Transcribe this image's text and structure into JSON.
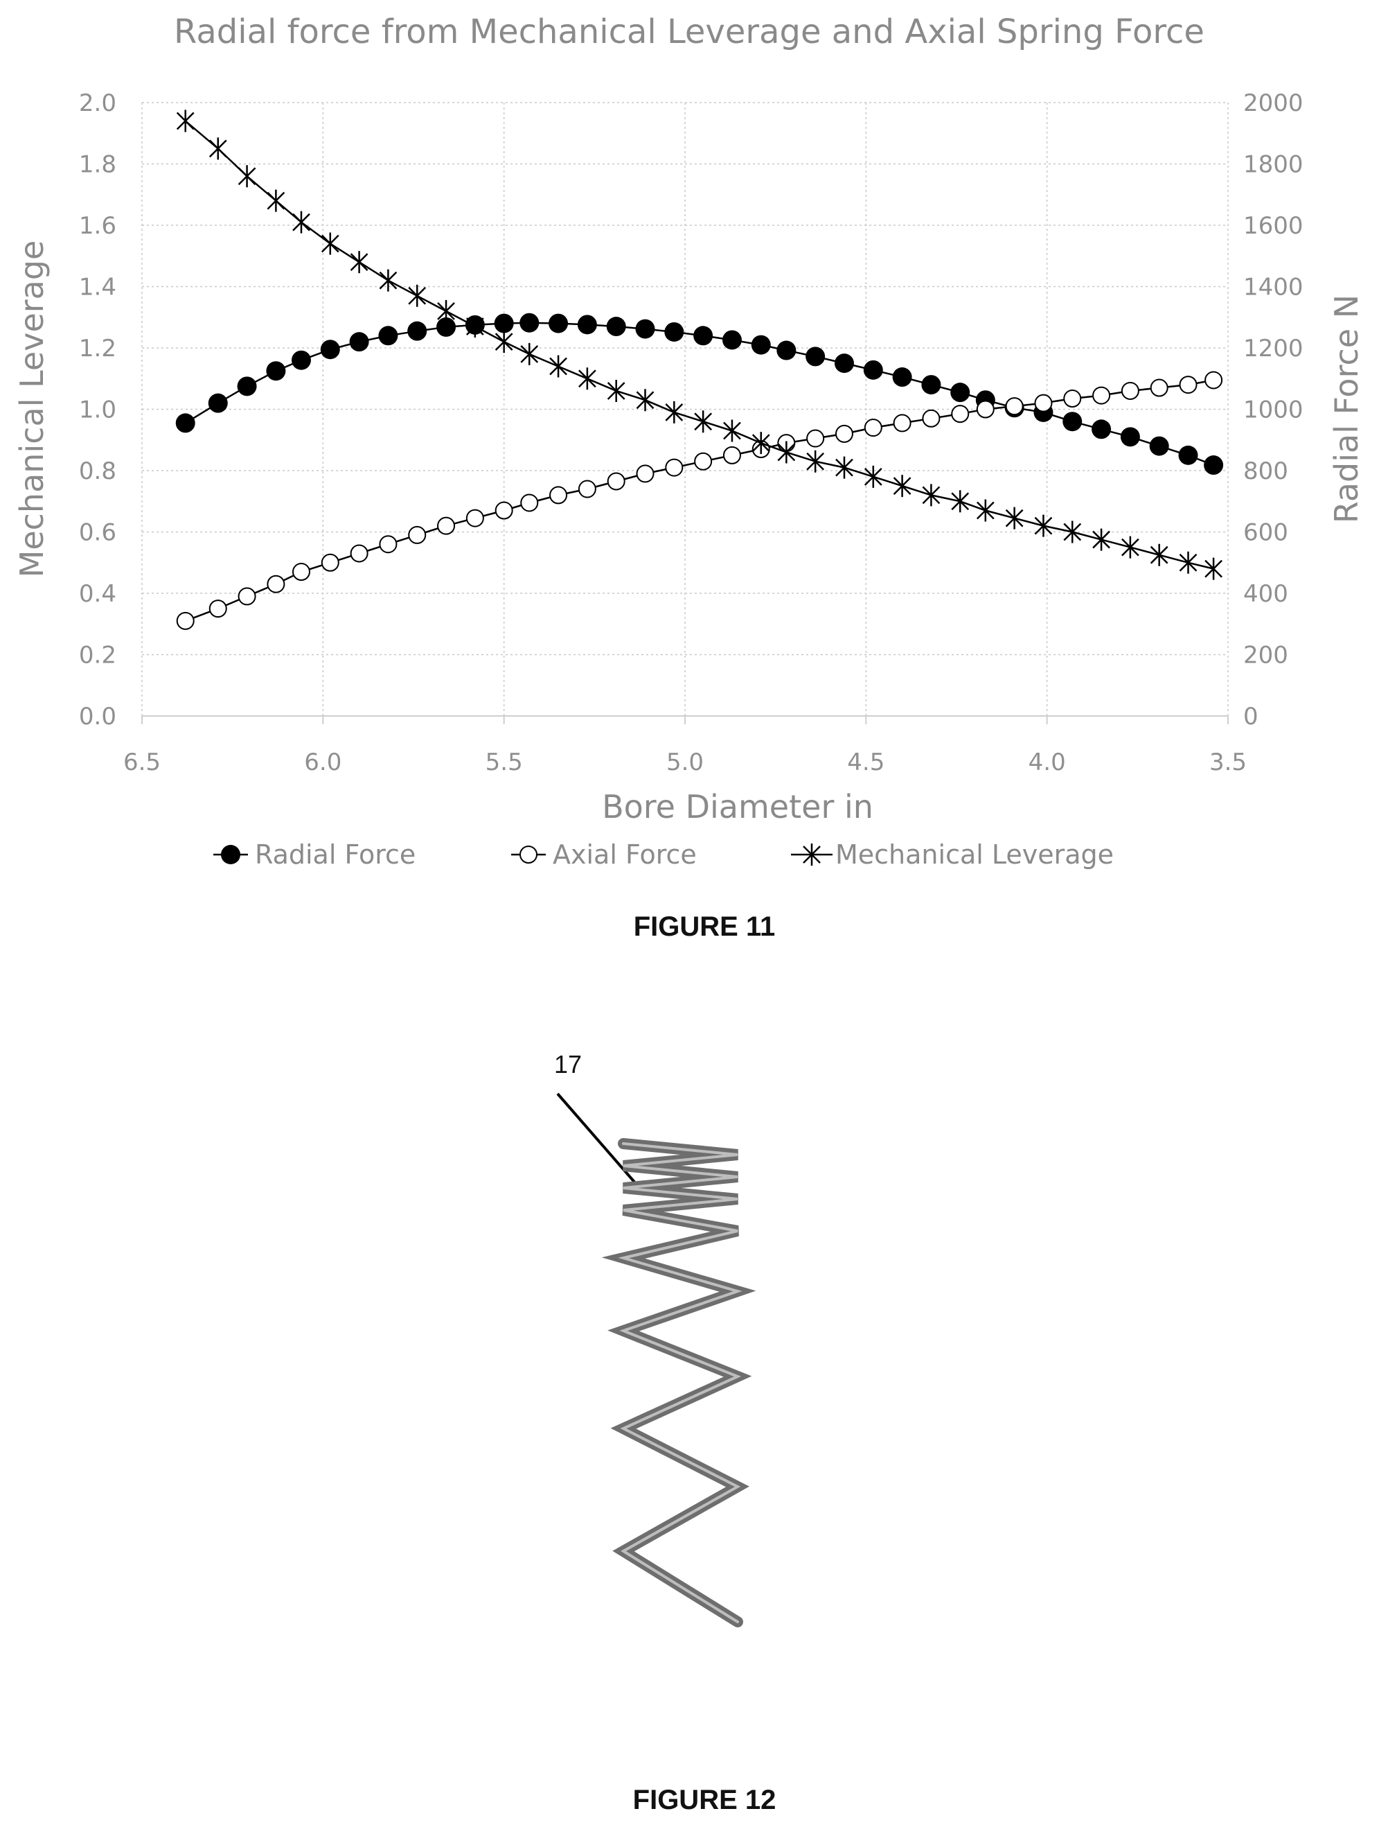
{
  "chart_data": {
    "type": "line",
    "title": "Radial force from Mechanical Leverage and Axial Spring Force",
    "xlabel": "Bore Diameter in",
    "ylabel_left": "Mechanical Leverage",
    "ylabel_right": "Radial Force N",
    "xlim": [
      6.5,
      3.5
    ],
    "ylim_left": [
      0.0,
      2.0
    ],
    "ylim_right": [
      0,
      2000
    ],
    "x_ticks": [
      "6.5",
      "6.0",
      "5.5",
      "5.0",
      "4.5",
      "4.0",
      "3.5"
    ],
    "y_left_ticks": [
      "0.0",
      "0.2",
      "0.4",
      "0.6",
      "0.8",
      "1.0",
      "1.2",
      "1.4",
      "1.6",
      "1.8",
      "2.0"
    ],
    "y_right_ticks": [
      "0",
      "200",
      "400",
      "600",
      "800",
      "1000",
      "1200",
      "1400",
      "1600",
      "1800",
      "2000"
    ],
    "grid": true,
    "legend_position": "bottom",
    "x": [
      6.38,
      6.29,
      6.21,
      6.13,
      6.06,
      5.98,
      5.9,
      5.82,
      5.74,
      5.66,
      5.58,
      5.5,
      5.43,
      5.35,
      5.27,
      5.19,
      5.11,
      5.03,
      4.95,
      4.87,
      4.79,
      4.72,
      4.64,
      4.56,
      4.48,
      4.4,
      4.32,
      4.24,
      4.17,
      4.09,
      4.01,
      3.93,
      3.85,
      3.77,
      3.69,
      3.61,
      3.54
    ],
    "series": [
      {
        "name": "Radial Force",
        "axis": "right",
        "marker": "filled-circle",
        "values": [
          955,
          1020,
          1075,
          1125,
          1160,
          1195,
          1220,
          1240,
          1255,
          1268,
          1275,
          1280,
          1282,
          1280,
          1276,
          1270,
          1262,
          1252,
          1240,
          1226,
          1210,
          1192,
          1172,
          1150,
          1128,
          1105,
          1080,
          1055,
          1030,
          1005,
          990,
          960,
          935,
          910,
          880,
          850,
          818
        ]
      },
      {
        "name": "Axial Force",
        "axis": "left",
        "marker": "open-circle",
        "values": [
          0.31,
          0.35,
          0.39,
          0.43,
          0.47,
          0.5,
          0.53,
          0.56,
          0.59,
          0.62,
          0.645,
          0.67,
          0.695,
          0.72,
          0.74,
          0.765,
          0.79,
          0.81,
          0.83,
          0.85,
          0.87,
          0.89,
          0.905,
          0.92,
          0.94,
          0.955,
          0.97,
          0.985,
          1.0,
          1.01,
          1.02,
          1.035,
          1.045,
          1.06,
          1.07,
          1.08,
          1.095
        ]
      },
      {
        "name": "Mechanical Leverage",
        "axis": "left",
        "marker": "star",
        "values": [
          1.94,
          1.85,
          1.76,
          1.68,
          1.61,
          1.54,
          1.48,
          1.42,
          1.37,
          1.32,
          1.27,
          1.22,
          1.18,
          1.14,
          1.1,
          1.06,
          1.03,
          0.99,
          0.96,
          0.93,
          0.89,
          0.86,
          0.83,
          0.81,
          0.78,
          0.75,
          0.72,
          0.7,
          0.67,
          0.645,
          0.62,
          0.6,
          0.575,
          0.55,
          0.525,
          0.5,
          0.48
        ]
      }
    ]
  },
  "figures": {
    "figure11_label": "FIGURE 11",
    "figure12_label": "FIGURE 12",
    "spring_reference_numeral": "17"
  }
}
